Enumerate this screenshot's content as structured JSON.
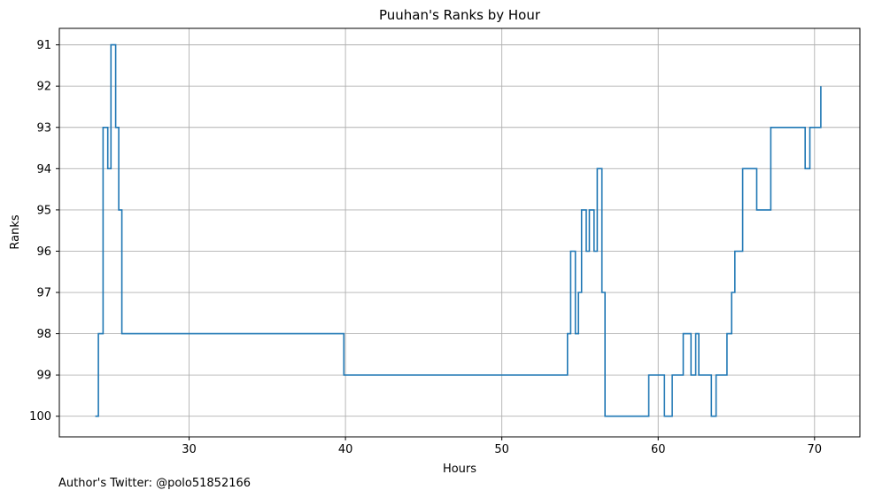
{
  "chart_data": {
    "type": "line",
    "drawstyle": "steps-post",
    "title": "Puuhan's Ranks by Hour",
    "xlabel": "Hours",
    "ylabel": "Ranks",
    "xlim": [
      21.7,
      72.9
    ],
    "ylim": [
      100.5,
      90.6
    ],
    "y_inverted": true,
    "xticks": [
      30,
      40,
      50,
      60,
      70
    ],
    "yticks": [
      91,
      92,
      93,
      94,
      95,
      96,
      97,
      98,
      99,
      100
    ],
    "grid": true,
    "legend": "none",
    "line_color": "#1f77b4",
    "series": [
      {
        "x": [
          24.0,
          24.2,
          24.5,
          24.8,
          25.0,
          25.3,
          25.5,
          25.7,
          39.9,
          54.2,
          54.4,
          54.7,
          54.9,
          55.1,
          55.4,
          55.6,
          55.9,
          56.1,
          56.4,
          56.6,
          59.4,
          60.4,
          60.9,
          61.6,
          62.1,
          62.4,
          62.6,
          63.4,
          63.7,
          64.4,
          64.7,
          64.9,
          65.4,
          66.3,
          67.2,
          69.4,
          69.7,
          70.4
        ],
        "y": [
          100,
          98,
          93,
          94,
          91,
          93,
          95,
          98,
          99,
          98,
          96,
          98,
          97,
          95,
          96,
          95,
          96,
          94,
          97,
          100,
          99,
          100,
          99,
          98,
          99,
          98,
          99,
          100,
          99,
          98,
          97,
          96,
          94,
          95,
          93,
          94,
          93,
          92
        ]
      }
    ]
  },
  "footnote": "Author's Twitter: @polo51852166"
}
